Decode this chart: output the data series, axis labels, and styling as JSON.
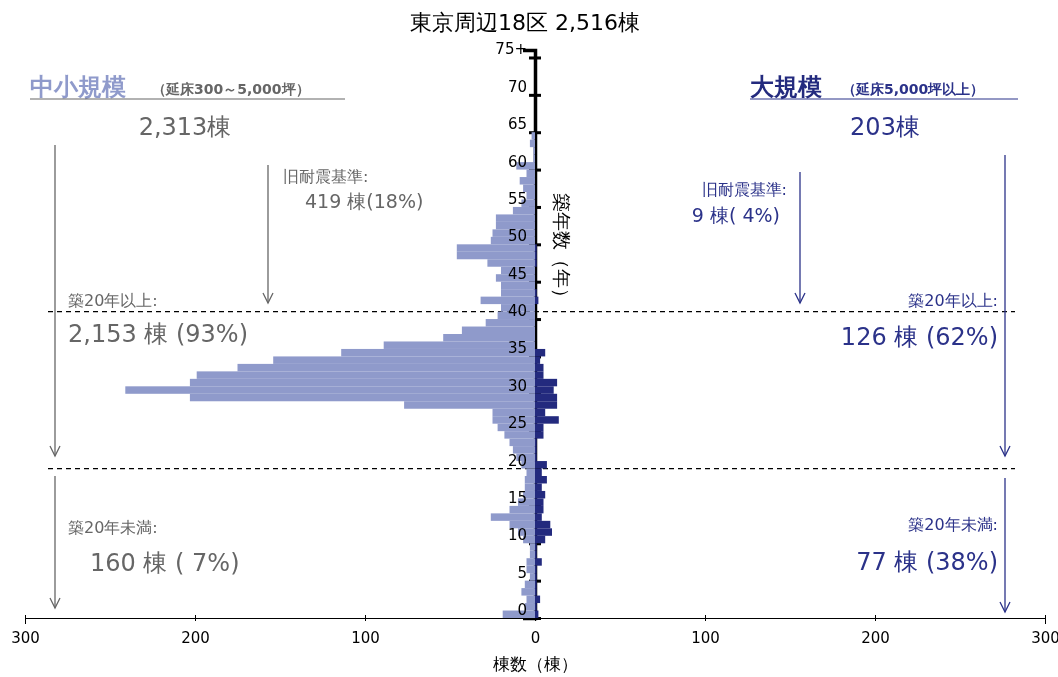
{
  "chart_data": {
    "type": "bar",
    "orientation": "horizontal",
    "title": "東京周辺18区 2,516棟",
    "xlabel": "棟数（棟）",
    "ylabel": "築年数（年）",
    "x": [
      0,
      1,
      2,
      3,
      4,
      5,
      6,
      7,
      8,
      9,
      10,
      11,
      12,
      13,
      14,
      15,
      16,
      17,
      18,
      19,
      20,
      21,
      22,
      23,
      24,
      25,
      26,
      27,
      28,
      29,
      30,
      31,
      32,
      33,
      34,
      35,
      36,
      37,
      38,
      39,
      40,
      41,
      42,
      43,
      44,
      45,
      46,
      47,
      48,
      49,
      50,
      51,
      52,
      53,
      54,
      55,
      56,
      57,
      58,
      59,
      60,
      61,
      62,
      63,
      64,
      65,
      66,
      67,
      68,
      69,
      70,
      71,
      72,
      73,
      74,
      75
    ],
    "xlim": [
      -300,
      300
    ],
    "xticks": [
      {
        "value": -300,
        "label": "300"
      },
      {
        "value": -200,
        "label": "200"
      },
      {
        "value": -100,
        "label": "100"
      },
      0,
      100,
      200,
      300
    ],
    "ylim": [
      0,
      76
    ],
    "yticks": [
      0,
      5,
      10,
      15,
      20,
      25,
      30,
      35,
      40,
      45,
      50,
      55,
      60,
      65,
      70,
      {
        "value": 75,
        "label": "75+"
      }
    ],
    "series": [
      {
        "name": "中小規模",
        "color": "#8f9acb",
        "values": [
          -19,
          -6,
          -5,
          -8,
          -6,
          -3,
          -5,
          -5,
          -3,
          -3,
          -7,
          -10,
          -15,
          -26,
          -15,
          -10,
          -7,
          -6,
          -6,
          -5,
          -8,
          -11,
          -13,
          -15,
          -18,
          -22,
          -25,
          -25,
          -77,
          -203,
          -241,
          -203,
          -199,
          -175,
          -154,
          -114,
          -89,
          -54,
          -43,
          -29,
          -22,
          -20,
          -32,
          -20,
          -20,
          -23,
          -20,
          -28,
          -46,
          -46,
          -26,
          -25,
          -23,
          -23,
          -13,
          -8,
          -5,
          -7,
          -9,
          -5,
          -11,
          -1,
          -1,
          -3,
          -2,
          0,
          0,
          0,
          0,
          0,
          0,
          0,
          0,
          0,
          0,
          0
        ]
      },
      {
        "name": "大規模",
        "color": "#232a7e",
        "values": [
          2,
          1,
          3,
          1,
          1,
          1,
          1,
          4,
          1,
          1,
          6,
          10,
          9,
          4,
          5,
          5,
          6,
          4,
          7,
          4,
          7,
          1,
          1,
          1,
          5,
          5,
          14,
          6,
          13,
          13,
          11,
          13,
          5,
          5,
          3,
          6,
          0,
          0,
          0,
          0,
          0,
          0,
          2,
          1,
          0,
          0,
          0,
          1,
          1,
          1,
          0,
          0,
          0,
          0,
          0,
          0,
          0,
          0,
          0,
          0,
          0,
          0,
          0,
          0,
          0,
          0,
          0,
          0,
          0,
          0,
          0,
          0,
          0,
          0,
          0,
          0
        ]
      }
    ],
    "ref_lines": [
      {
        "axis": "y",
        "value": 41,
        "line_style": "dashed",
        "color": "#000000"
      },
      {
        "axis": "y",
        "value": 20,
        "line_style": "dashed",
        "color": "#000000"
      }
    ],
    "annotations": [
      "（延床300～5,000坪）",
      "2,313棟",
      "旧耐震基準:",
      "419 棟(18%)",
      "築20年以上:",
      "2,153 棟 (93%)",
      "築20年未満:",
      "160 棟 ( 7%)",
      "（延床5,000坪以上）",
      "203棟",
      "旧耐震基準:",
      "9 棟( 4%)",
      "築20年以上:",
      "126 棟 (62%)",
      "築20年未満:",
      "77 棟 (38%)"
    ]
  }
}
